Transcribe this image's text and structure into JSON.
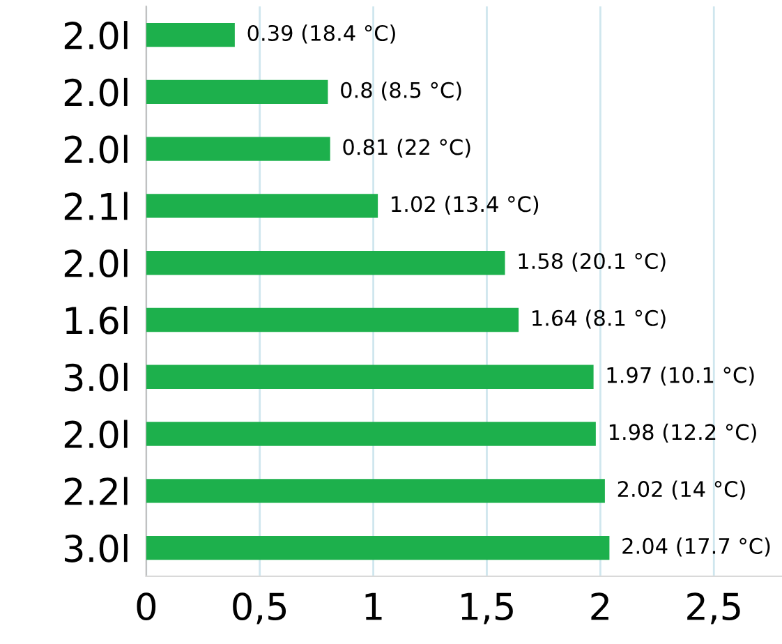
{
  "chart_data": {
    "type": "bar",
    "orientation": "horizontal",
    "categories": [
      "2.0l",
      "2.0l",
      "2.0l",
      "2.1l",
      "2.0l",
      "1.6l",
      "3.0l",
      "2.0l",
      "2.2l",
      "3.0l"
    ],
    "values": [
      0.39,
      0.8,
      0.81,
      1.02,
      1.58,
      1.64,
      1.97,
      1.98,
      2.02,
      2.04
    ],
    "value_labels": [
      "0.39 (18.4 °C)",
      "0.8 (8.5 °C)",
      "0.81 (22 °C)",
      "1.02 (13.4 °C)",
      "1.58 (20.1 °C)",
      "1.64 (8.1 °C)",
      "1.97 (10.1 °C)",
      "1.98 (12.2 °C)",
      "2.02 (14 °C)",
      "2.04 (17.7 °C)"
    ],
    "color": "#1db04c",
    "xlim": [
      0,
      2.8
    ],
    "xticks": [
      0,
      {
        "value": 0.5,
        "label": "0,5"
      },
      1,
      {
        "value": 1.5,
        "label": "1,5"
      },
      2,
      {
        "value": 2.5,
        "label": "2,5"
      }
    ],
    "grid": "x",
    "legend": false
  }
}
